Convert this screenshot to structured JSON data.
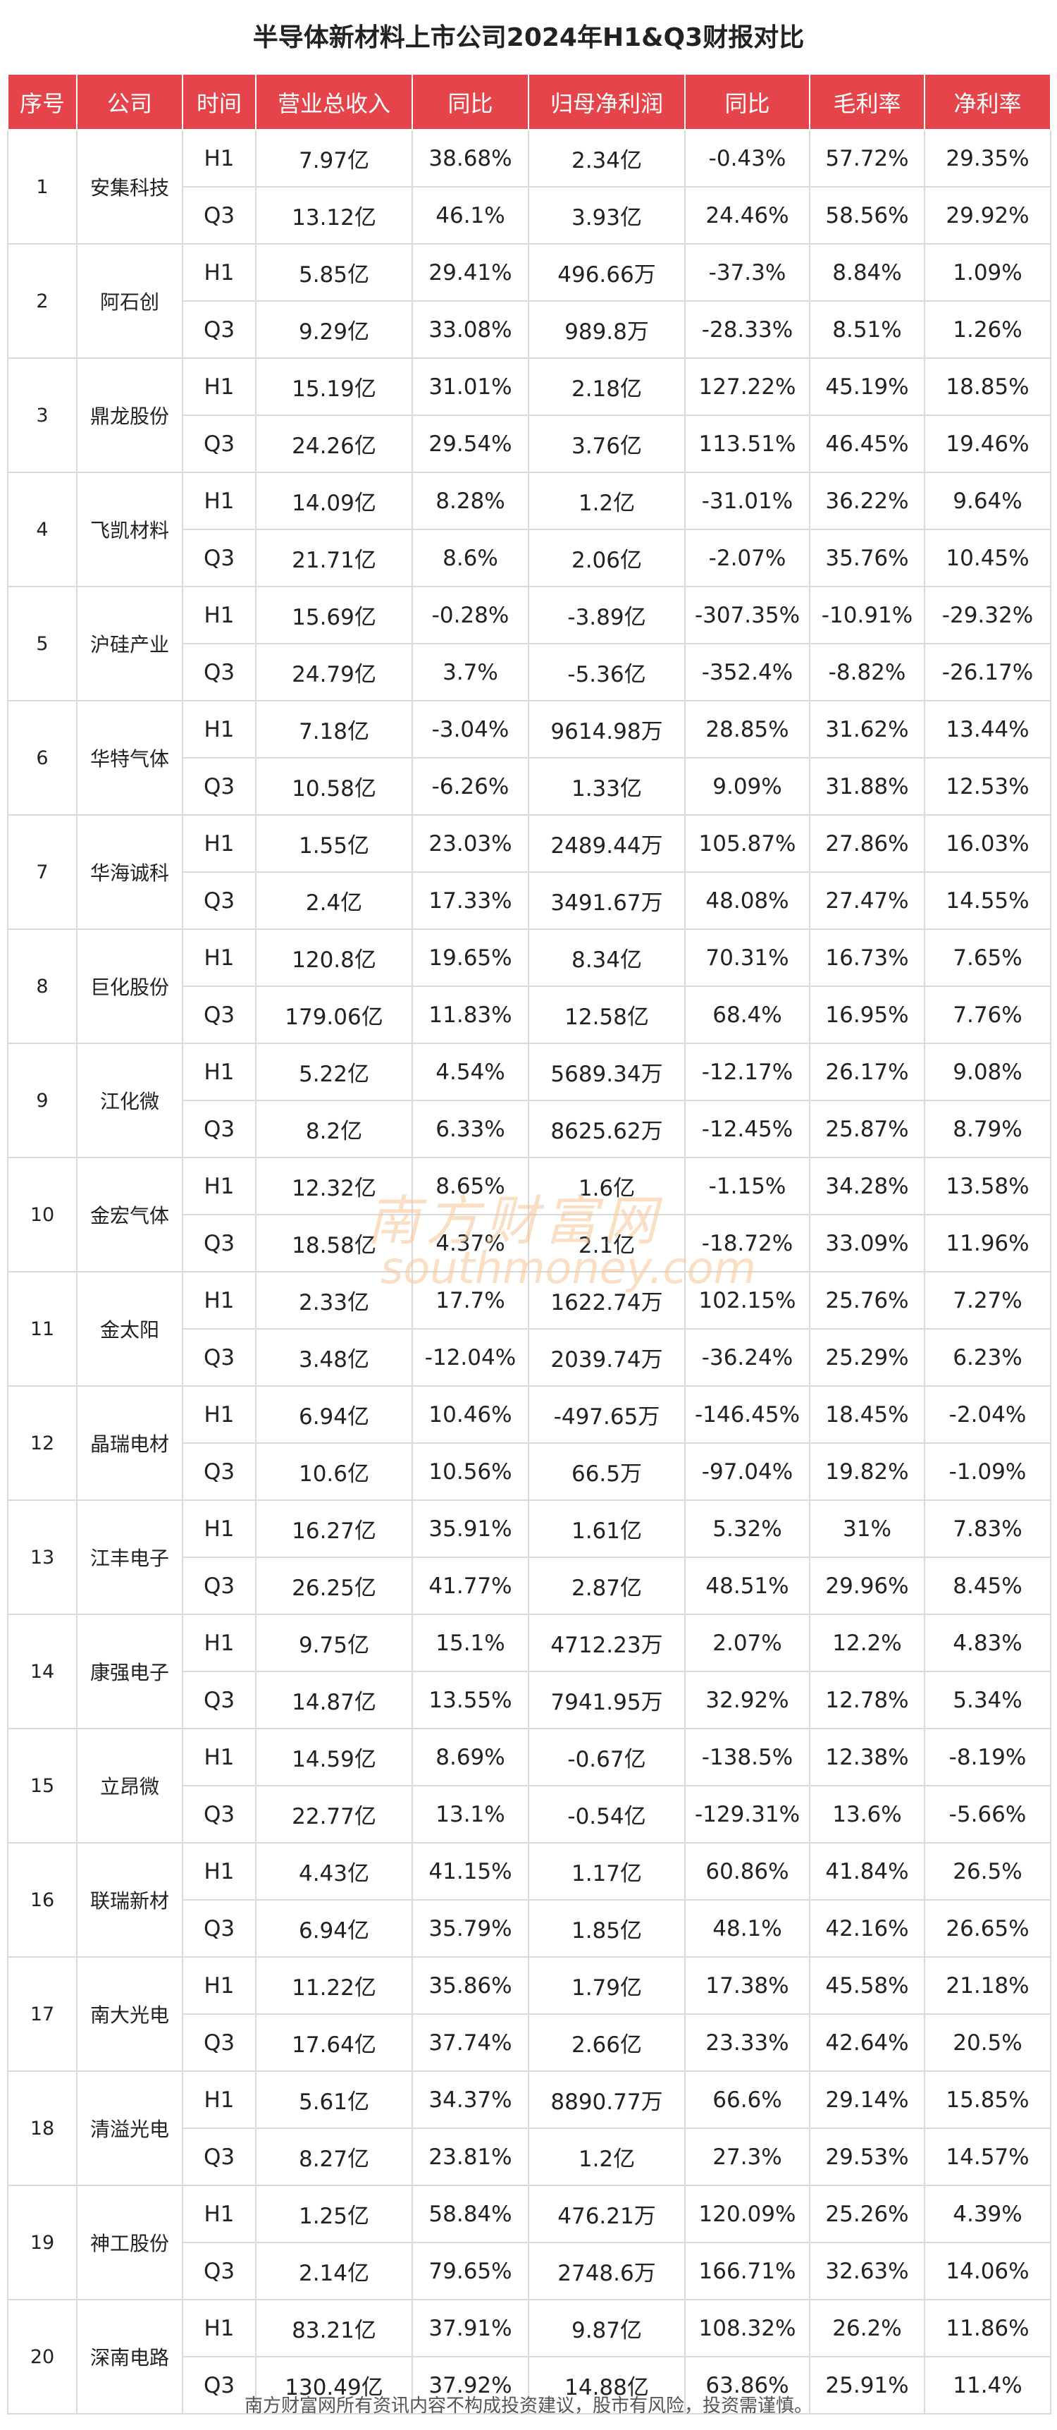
{
  "title": "半导体新材料上市公司2024年H1&Q3财报对比",
  "headers": [
    "序号",
    "公司",
    "时间",
    "营业总收入",
    "同比",
    "归母净利润",
    "同比",
    "毛利率",
    "净利率"
  ],
  "companies": [
    {
      "no": "1",
      "name": "安集科技",
      "rows": [
        {
          "period": "H1",
          "revenue": "7.97亿",
          "rev_yoy": "38.68%",
          "profit": "2.34亿",
          "profit_yoy": "-0.43%",
          "gross_margin": "57.72%",
          "net_margin": "29.35%"
        },
        {
          "period": "Q3",
          "revenue": "13.12亿",
          "rev_yoy": "46.1%",
          "profit": "3.93亿",
          "profit_yoy": "24.46%",
          "gross_margin": "58.56%",
          "net_margin": "29.92%"
        }
      ]
    },
    {
      "no": "2",
      "name": "阿石创",
      "rows": [
        {
          "period": "H1",
          "revenue": "5.85亿",
          "rev_yoy": "29.41%",
          "profit": "496.66万",
          "profit_yoy": "-37.3%",
          "gross_margin": "8.84%",
          "net_margin": "1.09%"
        },
        {
          "period": "Q3",
          "revenue": "9.29亿",
          "rev_yoy": "33.08%",
          "profit": "989.8万",
          "profit_yoy": "-28.33%",
          "gross_margin": "8.51%",
          "net_margin": "1.26%"
        }
      ]
    },
    {
      "no": "3",
      "name": "鼎龙股份",
      "rows": [
        {
          "period": "H1",
          "revenue": "15.19亿",
          "rev_yoy": "31.01%",
          "profit": "2.18亿",
          "profit_yoy": "127.22%",
          "gross_margin": "45.19%",
          "net_margin": "18.85%"
        },
        {
          "period": "Q3",
          "revenue": "24.26亿",
          "rev_yoy": "29.54%",
          "profit": "3.76亿",
          "profit_yoy": "113.51%",
          "gross_margin": "46.45%",
          "net_margin": "19.46%"
        }
      ]
    },
    {
      "no": "4",
      "name": "飞凯材料",
      "rows": [
        {
          "period": "H1",
          "revenue": "14.09亿",
          "rev_yoy": "8.28%",
          "profit": "1.2亿",
          "profit_yoy": "-31.01%",
          "gross_margin": "36.22%",
          "net_margin": "9.64%"
        },
        {
          "period": "Q3",
          "revenue": "21.71亿",
          "rev_yoy": "8.6%",
          "profit": "2.06亿",
          "profit_yoy": "-2.07%",
          "gross_margin": "35.76%",
          "net_margin": "10.45%"
        }
      ]
    },
    {
      "no": "5",
      "name": "沪硅产业",
      "rows": [
        {
          "period": "H1",
          "revenue": "15.69亿",
          "rev_yoy": "-0.28%",
          "profit": "-3.89亿",
          "profit_yoy": "-307.35%",
          "gross_margin": "-10.91%",
          "net_margin": "-29.32%"
        },
        {
          "period": "Q3",
          "revenue": "24.79亿",
          "rev_yoy": "3.7%",
          "profit": "-5.36亿",
          "profit_yoy": "-352.4%",
          "gross_margin": "-8.82%",
          "net_margin": "-26.17%"
        }
      ]
    },
    {
      "no": "6",
      "name": "华特气体",
      "rows": [
        {
          "period": "H1",
          "revenue": "7.18亿",
          "rev_yoy": "-3.04%",
          "profit": "9614.98万",
          "profit_yoy": "28.85%",
          "gross_margin": "31.62%",
          "net_margin": "13.44%"
        },
        {
          "period": "Q3",
          "revenue": "10.58亿",
          "rev_yoy": "-6.26%",
          "profit": "1.33亿",
          "profit_yoy": "9.09%",
          "gross_margin": "31.88%",
          "net_margin": "12.53%"
        }
      ]
    },
    {
      "no": "7",
      "name": "华海诚科",
      "rows": [
        {
          "period": "H1",
          "revenue": "1.55亿",
          "rev_yoy": "23.03%",
          "profit": "2489.44万",
          "profit_yoy": "105.87%",
          "gross_margin": "27.86%",
          "net_margin": "16.03%"
        },
        {
          "period": "Q3",
          "revenue": "2.4亿",
          "rev_yoy": "17.33%",
          "profit": "3491.67万",
          "profit_yoy": "48.08%",
          "gross_margin": "27.47%",
          "net_margin": "14.55%"
        }
      ]
    },
    {
      "no": "8",
      "name": "巨化股份",
      "rows": [
        {
          "period": "H1",
          "revenue": "120.8亿",
          "rev_yoy": "19.65%",
          "profit": "8.34亿",
          "profit_yoy": "70.31%",
          "gross_margin": "16.73%",
          "net_margin": "7.65%"
        },
        {
          "period": "Q3",
          "revenue": "179.06亿",
          "rev_yoy": "11.83%",
          "profit": "12.58亿",
          "profit_yoy": "68.4%",
          "gross_margin": "16.95%",
          "net_margin": "7.76%"
        }
      ]
    },
    {
      "no": "9",
      "name": "江化微",
      "rows": [
        {
          "period": "H1",
          "revenue": "5.22亿",
          "rev_yoy": "4.54%",
          "profit": "5689.34万",
          "profit_yoy": "-12.17%",
          "gross_margin": "26.17%",
          "net_margin": "9.08%"
        },
        {
          "period": "Q3",
          "revenue": "8.2亿",
          "rev_yoy": "6.33%",
          "profit": "8625.62万",
          "profit_yoy": "-12.45%",
          "gross_margin": "25.87%",
          "net_margin": "8.79%"
        }
      ]
    },
    {
      "no": "10",
      "name": "金宏气体",
      "rows": [
        {
          "period": "H1",
          "revenue": "12.32亿",
          "rev_yoy": "8.65%",
          "profit": "1.6亿",
          "profit_yoy": "-1.15%",
          "gross_margin": "34.28%",
          "net_margin": "13.58%"
        },
        {
          "period": "Q3",
          "revenue": "18.58亿",
          "rev_yoy": "4.37%",
          "profit": "2.1亿",
          "profit_yoy": "-18.72%",
          "gross_margin": "33.09%",
          "net_margin": "11.96%"
        }
      ]
    },
    {
      "no": "11",
      "name": "金太阳",
      "rows": [
        {
          "period": "H1",
          "revenue": "2.33亿",
          "rev_yoy": "17.7%",
          "profit": "1622.74万",
          "profit_yoy": "102.15%",
          "gross_margin": "25.76%",
          "net_margin": "7.27%"
        },
        {
          "period": "Q3",
          "revenue": "3.48亿",
          "rev_yoy": "-12.04%",
          "profit": "2039.74万",
          "profit_yoy": "-36.24%",
          "gross_margin": "25.29%",
          "net_margin": "6.23%"
        }
      ]
    },
    {
      "no": "12",
      "name": "晶瑞电材",
      "rows": [
        {
          "period": "H1",
          "revenue": "6.94亿",
          "rev_yoy": "10.46%",
          "profit": "-497.65万",
          "profit_yoy": "-146.45%",
          "gross_margin": "18.45%",
          "net_margin": "-2.04%"
        },
        {
          "period": "Q3",
          "revenue": "10.6亿",
          "rev_yoy": "10.56%",
          "profit": "66.5万",
          "profit_yoy": "-97.04%",
          "gross_margin": "19.82%",
          "net_margin": "-1.09%"
        }
      ]
    },
    {
      "no": "13",
      "name": "江丰电子",
      "rows": [
        {
          "period": "H1",
          "revenue": "16.27亿",
          "rev_yoy": "35.91%",
          "profit": "1.61亿",
          "profit_yoy": "5.32%",
          "gross_margin": "31%",
          "net_margin": "7.83%"
        },
        {
          "period": "Q3",
          "revenue": "26.25亿",
          "rev_yoy": "41.77%",
          "profit": "2.87亿",
          "profit_yoy": "48.51%",
          "gross_margin": "29.96%",
          "net_margin": "8.45%"
        }
      ]
    },
    {
      "no": "14",
      "name": "康强电子",
      "rows": [
        {
          "period": "H1",
          "revenue": "9.75亿",
          "rev_yoy": "15.1%",
          "profit": "4712.23万",
          "profit_yoy": "2.07%",
          "gross_margin": "12.2%",
          "net_margin": "4.83%"
        },
        {
          "period": "Q3",
          "revenue": "14.87亿",
          "rev_yoy": "13.55%",
          "profit": "7941.95万",
          "profit_yoy": "32.92%",
          "gross_margin": "12.78%",
          "net_margin": "5.34%"
        }
      ]
    },
    {
      "no": "15",
      "name": "立昂微",
      "rows": [
        {
          "period": "H1",
          "revenue": "14.59亿",
          "rev_yoy": "8.69%",
          "profit": "-0.67亿",
          "profit_yoy": "-138.5%",
          "gross_margin": "12.38%",
          "net_margin": "-8.19%"
        },
        {
          "period": "Q3",
          "revenue": "22.77亿",
          "rev_yoy": "13.1%",
          "profit": "-0.54亿",
          "profit_yoy": "-129.31%",
          "gross_margin": "13.6%",
          "net_margin": "-5.66%"
        }
      ]
    },
    {
      "no": "16",
      "name": "联瑞新材",
      "rows": [
        {
          "period": "H1",
          "revenue": "4.43亿",
          "rev_yoy": "41.15%",
          "profit": "1.17亿",
          "profit_yoy": "60.86%",
          "gross_margin": "41.84%",
          "net_margin": "26.5%"
        },
        {
          "period": "Q3",
          "revenue": "6.94亿",
          "rev_yoy": "35.79%",
          "profit": "1.85亿",
          "profit_yoy": "48.1%",
          "gross_margin": "42.16%",
          "net_margin": "26.65%"
        }
      ]
    },
    {
      "no": "17",
      "name": "南大光电",
      "rows": [
        {
          "period": "H1",
          "revenue": "11.22亿",
          "rev_yoy": "35.86%",
          "profit": "1.79亿",
          "profit_yoy": "17.38%",
          "gross_margin": "45.58%",
          "net_margin": "21.18%"
        },
        {
          "period": "Q3",
          "revenue": "17.64亿",
          "rev_yoy": "37.74%",
          "profit": "2.66亿",
          "profit_yoy": "23.33%",
          "gross_margin": "42.64%",
          "net_margin": "20.5%"
        }
      ]
    },
    {
      "no": "18",
      "name": "清溢光电",
      "rows": [
        {
          "period": "H1",
          "revenue": "5.61亿",
          "rev_yoy": "34.37%",
          "profit": "8890.77万",
          "profit_yoy": "66.6%",
          "gross_margin": "29.14%",
          "net_margin": "15.85%"
        },
        {
          "period": "Q3",
          "revenue": "8.27亿",
          "rev_yoy": "23.81%",
          "profit": "1.2亿",
          "profit_yoy": "27.3%",
          "gross_margin": "29.53%",
          "net_margin": "14.57%"
        }
      ]
    },
    {
      "no": "19",
      "name": "神工股份",
      "rows": [
        {
          "period": "H1",
          "revenue": "1.25亿",
          "rev_yoy": "58.84%",
          "profit": "476.21万",
          "profit_yoy": "120.09%",
          "gross_margin": "25.26%",
          "net_margin": "4.39%"
        },
        {
          "period": "Q3",
          "revenue": "2.14亿",
          "rev_yoy": "79.65%",
          "profit": "2748.6万",
          "profit_yoy": "166.71%",
          "gross_margin": "32.63%",
          "net_margin": "14.06%"
        }
      ]
    },
    {
      "no": "20",
      "name": "深南电路",
      "rows": [
        {
          "period": "H1",
          "revenue": "83.21亿",
          "rev_yoy": "37.91%",
          "profit": "9.87亿",
          "profit_yoy": "108.32%",
          "gross_margin": "26.2%",
          "net_margin": "11.86%"
        },
        {
          "period": "Q3",
          "revenue": "130.49亿",
          "rev_yoy": "37.92%",
          "profit": "14.88亿",
          "profit_yoy": "63.86%",
          "gross_margin": "25.91%",
          "net_margin": "11.4%"
        }
      ]
    }
  ],
  "watermark": {
    "cn": "南方财富网",
    "en": "southmoney.com"
  },
  "footer": "南方财富网所有资讯内容不构成投资建议，股市有风险，投资需谨慎。",
  "colors": {
    "header_bg": "#e5454a",
    "header_text": "#ffffff",
    "border": "#d9d9d9"
  }
}
